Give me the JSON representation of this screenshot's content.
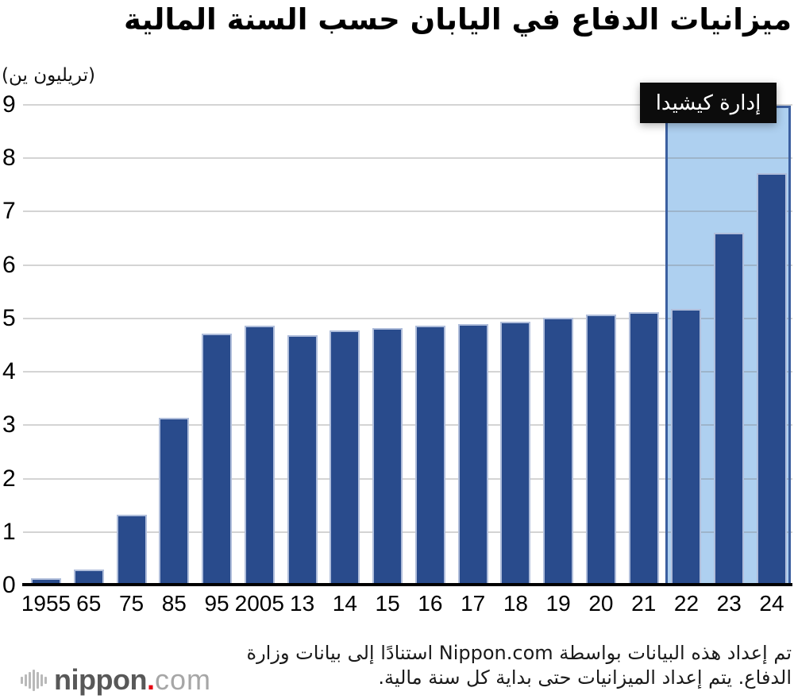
{
  "title": "ميزانيات الدفاع في اليابان حسب السنة المالية",
  "unit_label": "(تريليون ين)",
  "badge": {
    "label": "إدارة كيشيدا",
    "bg": "#0c0c0c",
    "text_color": "#ffffff"
  },
  "chart_data": {
    "type": "bar",
    "title": "ميزانيات الدفاع في اليابان حسب السنة المالية",
    "ylabel": "(تريليون ين)",
    "categories": [
      "1955",
      "65",
      "75",
      "85",
      "95",
      "2005",
      "13",
      "14",
      "15",
      "16",
      "17",
      "18",
      "19",
      "20",
      "21",
      "22",
      "23",
      "24"
    ],
    "values": [
      0.13,
      0.3,
      1.33,
      3.14,
      4.72,
      4.86,
      4.68,
      4.78,
      4.82,
      4.86,
      4.9,
      4.94,
      5.01,
      5.07,
      5.12,
      5.18,
      6.6,
      7.72
    ],
    "ylim": [
      0,
      9
    ],
    "yticks": [
      0,
      1,
      2,
      3,
      4,
      5,
      6,
      7,
      8,
      9
    ],
    "grid": true,
    "legend": "none",
    "bar_color": "#294b8c",
    "gridline_color": "#d9d9d9",
    "axis_color": "#000000",
    "highlight": {
      "label": "إدارة كيشيدا",
      "from_category": "22",
      "to_category": "24",
      "fill": "#aed0f0",
      "border": "#3b5fa0"
    }
  },
  "footer": {
    "line1": "تم إعداد هذه البيانات بواسطة Nippon.com استنادًا إلى بيانات وزارة",
    "line2": "الدفاع. يتم إعداد الميزانيات حتى بداية كل سنة مالية.",
    "logo": {
      "text_bold": "nippon",
      "dot": ".",
      "text_light": "com",
      "red": "#e60012"
    }
  }
}
